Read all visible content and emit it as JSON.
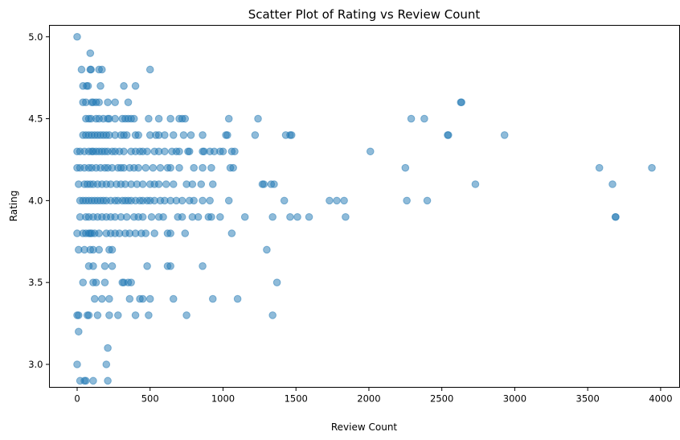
{
  "chart_data": {
    "type": "scatter",
    "title": "Scatter Plot of Rating vs Review Count",
    "xlabel": "Review Count",
    "ylabel": "Rating",
    "xlim": [
      -190,
      4130
    ],
    "ylim": [
      2.86,
      5.07
    ],
    "xticks": [
      0,
      500,
      1000,
      1500,
      2000,
      2500,
      3000,
      3500,
      4000
    ],
    "xtick_labels": [
      "0",
      "500",
      "1000",
      "1500",
      "2000",
      "2500",
      "3000",
      "3500",
      "4000"
    ],
    "yticks": [
      3.0,
      3.5,
      4.0,
      4.5,
      5.0
    ],
    "ytick_labels": [
      "3.0",
      "3.5",
      "4.0",
      "4.5",
      "5.0"
    ],
    "grid": false,
    "marker_color": "#1f77b4",
    "marker_alpha": 0.5,
    "points": [
      [
        0,
        5.0
      ],
      [
        90,
        4.9
      ],
      [
        30,
        4.8
      ],
      [
        90,
        4.8
      ],
      [
        95,
        4.8
      ],
      [
        150,
        4.8
      ],
      [
        170,
        4.8
      ],
      [
        500,
        4.8
      ],
      [
        40,
        4.7
      ],
      [
        65,
        4.7
      ],
      [
        75,
        4.7
      ],
      [
        160,
        4.7
      ],
      [
        320,
        4.7
      ],
      [
        400,
        4.7
      ],
      [
        40,
        4.6
      ],
      [
        60,
        4.6
      ],
      [
        100,
        4.6
      ],
      [
        110,
        4.6
      ],
      [
        130,
        4.6
      ],
      [
        150,
        4.6
      ],
      [
        210,
        4.6
      ],
      [
        260,
        4.6
      ],
      [
        350,
        4.6
      ],
      [
        2630,
        4.6
      ],
      [
        2635,
        4.6
      ],
      [
        60,
        4.5
      ],
      [
        80,
        4.5
      ],
      [
        95,
        4.5
      ],
      [
        130,
        4.5
      ],
      [
        150,
        4.5
      ],
      [
        180,
        4.5
      ],
      [
        210,
        4.5
      ],
      [
        220,
        4.5
      ],
      [
        260,
        4.5
      ],
      [
        310,
        4.5
      ],
      [
        330,
        4.5
      ],
      [
        350,
        4.5
      ],
      [
        370,
        4.5
      ],
      [
        390,
        4.5
      ],
      [
        490,
        4.5
      ],
      [
        560,
        4.5
      ],
      [
        640,
        4.5
      ],
      [
        700,
        4.5
      ],
      [
        720,
        4.5
      ],
      [
        740,
        4.5
      ],
      [
        1040,
        4.5
      ],
      [
        1240,
        4.5
      ],
      [
        2290,
        4.5
      ],
      [
        2380,
        4.5
      ],
      [
        40,
        4.4
      ],
      [
        60,
        4.4
      ],
      [
        80,
        4.4
      ],
      [
        100,
        4.4
      ],
      [
        120,
        4.4
      ],
      [
        140,
        4.4
      ],
      [
        160,
        4.4
      ],
      [
        180,
        4.4
      ],
      [
        200,
        4.4
      ],
      [
        220,
        4.4
      ],
      [
        260,
        4.4
      ],
      [
        300,
        4.4
      ],
      [
        320,
        4.4
      ],
      [
        340,
        4.4
      ],
      [
        400,
        4.4
      ],
      [
        420,
        4.4
      ],
      [
        500,
        4.4
      ],
      [
        540,
        4.4
      ],
      [
        560,
        4.4
      ],
      [
        600,
        4.4
      ],
      [
        660,
        4.4
      ],
      [
        730,
        4.4
      ],
      [
        780,
        4.4
      ],
      [
        860,
        4.4
      ],
      [
        1020,
        4.4
      ],
      [
        1030,
        4.4
      ],
      [
        1220,
        4.4
      ],
      [
        1430,
        4.4
      ],
      [
        1460,
        4.4
      ],
      [
        1470,
        4.4
      ],
      [
        2540,
        4.4
      ],
      [
        2545,
        4.4
      ],
      [
        2930,
        4.4
      ],
      [
        0,
        4.3
      ],
      [
        20,
        4.3
      ],
      [
        50,
        4.3
      ],
      [
        80,
        4.3
      ],
      [
        100,
        4.3
      ],
      [
        110,
        4.3
      ],
      [
        130,
        4.3
      ],
      [
        150,
        4.3
      ],
      [
        170,
        4.3
      ],
      [
        190,
        4.3
      ],
      [
        210,
        4.3
      ],
      [
        240,
        4.3
      ],
      [
        260,
        4.3
      ],
      [
        290,
        4.3
      ],
      [
        320,
        4.3
      ],
      [
        370,
        4.3
      ],
      [
        400,
        4.3
      ],
      [
        430,
        4.3
      ],
      [
        450,
        4.3
      ],
      [
        480,
        4.3
      ],
      [
        530,
        4.3
      ],
      [
        560,
        4.3
      ],
      [
        600,
        4.3
      ],
      [
        650,
        4.3
      ],
      [
        680,
        4.3
      ],
      [
        700,
        4.3
      ],
      [
        760,
        4.3
      ],
      [
        770,
        4.3
      ],
      [
        860,
        4.3
      ],
      [
        870,
        4.3
      ],
      [
        910,
        4.3
      ],
      [
        940,
        4.3
      ],
      [
        980,
        4.3
      ],
      [
        1000,
        4.3
      ],
      [
        1060,
        4.3
      ],
      [
        1080,
        4.3
      ],
      [
        2010,
        4.3
      ],
      [
        0,
        4.2
      ],
      [
        20,
        4.2
      ],
      [
        50,
        4.2
      ],
      [
        80,
        4.2
      ],
      [
        100,
        4.2
      ],
      [
        130,
        4.2
      ],
      [
        160,
        4.2
      ],
      [
        190,
        4.2
      ],
      [
        210,
        4.2
      ],
      [
        240,
        4.2
      ],
      [
        280,
        4.2
      ],
      [
        300,
        4.2
      ],
      [
        320,
        4.2
      ],
      [
        360,
        4.2
      ],
      [
        390,
        4.2
      ],
      [
        420,
        4.2
      ],
      [
        470,
        4.2
      ],
      [
        520,
        4.2
      ],
      [
        570,
        4.2
      ],
      [
        620,
        4.2
      ],
      [
        640,
        4.2
      ],
      [
        700,
        4.2
      ],
      [
        800,
        4.2
      ],
      [
        860,
        4.2
      ],
      [
        920,
        4.2
      ],
      [
        1050,
        4.2
      ],
      [
        1070,
        4.2
      ],
      [
        2250,
        4.2
      ],
      [
        3580,
        4.2
      ],
      [
        3940,
        4.2
      ],
      [
        10,
        4.1
      ],
      [
        50,
        4.1
      ],
      [
        70,
        4.1
      ],
      [
        90,
        4.1
      ],
      [
        110,
        4.1
      ],
      [
        140,
        4.1
      ],
      [
        170,
        4.1
      ],
      [
        200,
        4.1
      ],
      [
        230,
        4.1
      ],
      [
        270,
        4.1
      ],
      [
        300,
        4.1
      ],
      [
        330,
        4.1
      ],
      [
        370,
        4.1
      ],
      [
        410,
        4.1
      ],
      [
        450,
        4.1
      ],
      [
        500,
        4.1
      ],
      [
        530,
        4.1
      ],
      [
        560,
        4.1
      ],
      [
        610,
        4.1
      ],
      [
        660,
        4.1
      ],
      [
        750,
        4.1
      ],
      [
        790,
        4.1
      ],
      [
        850,
        4.1
      ],
      [
        930,
        4.1
      ],
      [
        1270,
        4.1
      ],
      [
        1280,
        4.1
      ],
      [
        1330,
        4.1
      ],
      [
        1350,
        4.1
      ],
      [
        2730,
        4.1
      ],
      [
        3670,
        4.1
      ],
      [
        20,
        4.0
      ],
      [
        40,
        4.0
      ],
      [
        60,
        4.0
      ],
      [
        80,
        4.0
      ],
      [
        100,
        4.0
      ],
      [
        120,
        4.0
      ],
      [
        140,
        4.0
      ],
      [
        160,
        4.0
      ],
      [
        180,
        4.0
      ],
      [
        200,
        4.0
      ],
      [
        230,
        4.0
      ],
      [
        260,
        4.0
      ],
      [
        280,
        4.0
      ],
      [
        310,
        4.0
      ],
      [
        330,
        4.0
      ],
      [
        350,
        4.0
      ],
      [
        370,
        4.0
      ],
      [
        400,
        4.0
      ],
      [
        430,
        4.0
      ],
      [
        450,
        4.0
      ],
      [
        480,
        4.0
      ],
      [
        500,
        4.0
      ],
      [
        530,
        4.0
      ],
      [
        570,
        4.0
      ],
      [
        600,
        4.0
      ],
      [
        640,
        4.0
      ],
      [
        680,
        4.0
      ],
      [
        720,
        4.0
      ],
      [
        770,
        4.0
      ],
      [
        800,
        4.0
      ],
      [
        860,
        4.0
      ],
      [
        910,
        4.0
      ],
      [
        1040,
        4.0
      ],
      [
        1420,
        4.0
      ],
      [
        1730,
        4.0
      ],
      [
        1780,
        4.0
      ],
      [
        1830,
        4.0
      ],
      [
        2260,
        4.0
      ],
      [
        2400,
        4.0
      ],
      [
        20,
        3.9
      ],
      [
        60,
        3.9
      ],
      [
        80,
        3.9
      ],
      [
        110,
        3.9
      ],
      [
        140,
        3.9
      ],
      [
        170,
        3.9
      ],
      [
        200,
        3.9
      ],
      [
        230,
        3.9
      ],
      [
        260,
        3.9
      ],
      [
        300,
        3.9
      ],
      [
        340,
        3.9
      ],
      [
        390,
        3.9
      ],
      [
        420,
        3.9
      ],
      [
        450,
        3.9
      ],
      [
        510,
        3.9
      ],
      [
        560,
        3.9
      ],
      [
        590,
        3.9
      ],
      [
        690,
        3.9
      ],
      [
        720,
        3.9
      ],
      [
        790,
        3.9
      ],
      [
        830,
        3.9
      ],
      [
        900,
        3.9
      ],
      [
        920,
        3.9
      ],
      [
        980,
        3.9
      ],
      [
        1150,
        3.9
      ],
      [
        1340,
        3.9
      ],
      [
        1460,
        3.9
      ],
      [
        1510,
        3.9
      ],
      [
        1590,
        3.9
      ],
      [
        1840,
        3.9
      ],
      [
        3690,
        3.9
      ],
      [
        3692,
        3.9
      ],
      [
        0,
        3.8
      ],
      [
        40,
        3.8
      ],
      [
        60,
        3.8
      ],
      [
        80,
        3.8
      ],
      [
        90,
        3.8
      ],
      [
        100,
        3.8
      ],
      [
        120,
        3.8
      ],
      [
        150,
        3.8
      ],
      [
        200,
        3.8
      ],
      [
        230,
        3.8
      ],
      [
        260,
        3.8
      ],
      [
        290,
        3.8
      ],
      [
        330,
        3.8
      ],
      [
        360,
        3.8
      ],
      [
        400,
        3.8
      ],
      [
        440,
        3.8
      ],
      [
        470,
        3.8
      ],
      [
        530,
        3.8
      ],
      [
        620,
        3.8
      ],
      [
        640,
        3.8
      ],
      [
        740,
        3.8
      ],
      [
        1060,
        3.8
      ],
      [
        10,
        3.7
      ],
      [
        50,
        3.7
      ],
      [
        90,
        3.7
      ],
      [
        110,
        3.7
      ],
      [
        150,
        3.7
      ],
      [
        220,
        3.7
      ],
      [
        240,
        3.7
      ],
      [
        1300,
        3.7
      ],
      [
        80,
        3.6
      ],
      [
        110,
        3.6
      ],
      [
        190,
        3.6
      ],
      [
        240,
        3.6
      ],
      [
        480,
        3.6
      ],
      [
        620,
        3.6
      ],
      [
        640,
        3.6
      ],
      [
        860,
        3.6
      ],
      [
        40,
        3.5
      ],
      [
        110,
        3.5
      ],
      [
        130,
        3.5
      ],
      [
        190,
        3.5
      ],
      [
        310,
        3.5
      ],
      [
        320,
        3.5
      ],
      [
        350,
        3.5
      ],
      [
        370,
        3.5
      ],
      [
        1370,
        3.5
      ],
      [
        120,
        3.4
      ],
      [
        170,
        3.4
      ],
      [
        220,
        3.4
      ],
      [
        360,
        3.4
      ],
      [
        430,
        3.4
      ],
      [
        450,
        3.4
      ],
      [
        500,
        3.4
      ],
      [
        660,
        3.4
      ],
      [
        930,
        3.4
      ],
      [
        1100,
        3.4
      ],
      [
        0,
        3.3
      ],
      [
        10,
        3.3
      ],
      [
        70,
        3.3
      ],
      [
        80,
        3.3
      ],
      [
        140,
        3.3
      ],
      [
        220,
        3.3
      ],
      [
        280,
        3.3
      ],
      [
        400,
        3.3
      ],
      [
        490,
        3.3
      ],
      [
        750,
        3.3
      ],
      [
        1340,
        3.3
      ],
      [
        10,
        3.2
      ],
      [
        210,
        3.1
      ],
      [
        0,
        3.0
      ],
      [
        200,
        3.0
      ],
      [
        20,
        2.9
      ],
      [
        50,
        2.9
      ],
      [
        60,
        2.9
      ],
      [
        110,
        2.9
      ],
      [
        210,
        2.9
      ]
    ]
  }
}
